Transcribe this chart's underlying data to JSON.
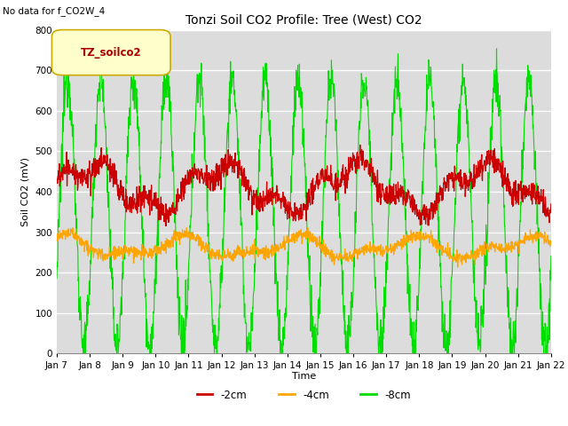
{
  "title": "Tonzi Soil CO2 Profile: Tree (West) CO2",
  "subtitle": "No data for f_CO2W_4",
  "ylabel": "Soil CO2 (mV)",
  "xlabel": "Time",
  "legend_label": "TZ_soilco2",
  "series_labels": [
    "-2cm",
    "-4cm",
    "-8cm"
  ],
  "series_colors": [
    "#cc0000",
    "#ffa500",
    "#00dd00"
  ],
  "ylim": [
    0,
    800
  ],
  "bg_color": "#dcdcdc",
  "fig_bg": "#ffffff",
  "yticks": [
    0,
    100,
    200,
    300,
    400,
    500,
    600,
    700,
    800
  ],
  "xtick_labels": [
    "Jan 7",
    "Jan 8",
    "Jan 9",
    "Jan 10",
    "Jan 11",
    "Jan 12",
    "Jan 13",
    "Jan 14",
    "Jan 15",
    "Jan 16",
    "Jan 17",
    "Jan 18",
    "Jan 19",
    "Jan 20",
    "Jan 21",
    "Jan 22"
  ],
  "n_points": 1500,
  "title_fontsize": 10,
  "axis_fontsize": 8,
  "tick_fontsize": 7.5
}
